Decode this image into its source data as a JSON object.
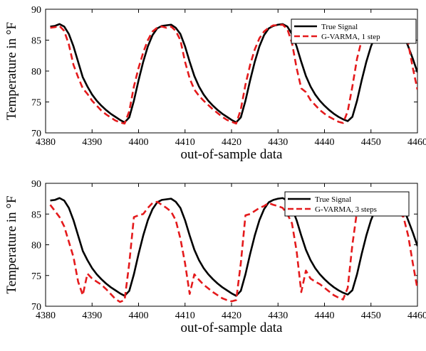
{
  "chart_data": [
    {
      "type": "line",
      "title": "",
      "xlabel": "out-of-sample data",
      "ylabel": "Temperature in °F",
      "xlim": [
        4380,
        4460
      ],
      "ylim": [
        70,
        90
      ],
      "xticks": [
        4380,
        4390,
        4400,
        4410,
        4420,
        4430,
        4440,
        4450,
        4460
      ],
      "yticks": [
        70,
        75,
        80,
        85,
        90
      ],
      "grid": false,
      "legend_position": "top-right",
      "series": [
        {
          "name": "True Signal",
          "color": "#000000",
          "style": "solid",
          "x": [
            4381,
            4382,
            4383,
            4384,
            4385,
            4386,
            4387,
            4388,
            4389,
            4390,
            4391,
            4392,
            4393,
            4394,
            4395,
            4396,
            4397,
            4398,
            4399,
            4400,
            4401,
            4402,
            4403,
            4404,
            4405,
            4406,
            4407,
            4408,
            4409,
            4410,
            4411,
            4412,
            4413,
            4414,
            4415,
            4416,
            4417,
            4418,
            4419,
            4420,
            4421,
            4422,
            4423,
            4424,
            4425,
            4426,
            4427,
            4428,
            4429,
            4430,
            4431,
            4432,
            4433,
            4434,
            4435,
            4436,
            4437,
            4438,
            4439,
            4440,
            4441,
            4442,
            4443,
            4444,
            4445,
            4446,
            4447,
            4448,
            4449,
            4450,
            4451,
            4452,
            4453,
            4454,
            4455,
            4456,
            4457,
            4458,
            4459,
            4460
          ],
          "y": [
            87.2,
            87.3,
            87.6,
            87.2,
            86.0,
            84.0,
            81.5,
            79.0,
            77.5,
            76.2,
            75.2,
            74.4,
            73.7,
            73.1,
            72.6,
            72.1,
            71.7,
            72.5,
            75.2,
            78.5,
            81.5,
            84.0,
            85.8,
            86.9,
            87.3,
            87.4,
            87.5,
            87.0,
            86.0,
            84.0,
            81.5,
            79.2,
            77.5,
            76.2,
            75.2,
            74.4,
            73.7,
            73.1,
            72.6,
            72.1,
            71.7,
            72.5,
            75.2,
            78.5,
            81.5,
            84.0,
            85.8,
            86.9,
            87.3,
            87.5,
            87.6,
            87.2,
            86.0,
            84.0,
            81.5,
            79.2,
            77.5,
            76.2,
            75.2,
            74.4,
            73.7,
            73.1,
            72.6,
            72.2,
            71.9,
            72.6,
            75.2,
            78.5,
            81.5,
            84.0,
            85.8,
            86.9,
            87.3,
            87.4,
            87.4,
            87.0,
            86.0,
            84.0,
            82.0,
            79.8
          ]
        },
        {
          "name": "G-VARMA, 1 step",
          "color": "#e41a1c",
          "style": "dashed",
          "x": [
            4381,
            4382,
            4383,
            4384,
            4385,
            4386,
            4387,
            4388,
            4389,
            4390,
            4391,
            4392,
            4393,
            4394,
            4395,
            4396,
            4397,
            4398,
            4399,
            4400,
            4401,
            4402,
            4403,
            4404,
            4405,
            4406,
            4407,
            4408,
            4409,
            4410,
            4411,
            4412,
            4413,
            4414,
            4415,
            4416,
            4417,
            4418,
            4419,
            4420,
            4421,
            4422,
            4423,
            4424,
            4425,
            4426,
            4427,
            4428,
            4429,
            4430,
            4431,
            4432,
            4433,
            4434,
            4435,
            4436,
            4437,
            4438,
            4439,
            4440,
            4441,
            4442,
            4443,
            4444,
            4445,
            4446,
            4447,
            4448,
            4449,
            4450,
            4451,
            4452,
            4453,
            4454,
            4455,
            4456,
            4457,
            4458,
            4459,
            4460
          ],
          "y": [
            87.0,
            87.1,
            87.3,
            86.5,
            84.3,
            81.0,
            79.0,
            77.2,
            76.3,
            75.2,
            74.4,
            73.6,
            73.0,
            72.5,
            72.0,
            71.7,
            71.5,
            73.5,
            77.5,
            80.5,
            83.0,
            85.0,
            86.4,
            87.0,
            87.2,
            87.0,
            87.2,
            86.5,
            85.0,
            81.5,
            78.8,
            77.0,
            76.0,
            75.2,
            74.5,
            73.8,
            73.2,
            72.6,
            72.1,
            71.8,
            71.5,
            73.8,
            77.8,
            81.0,
            83.5,
            85.3,
            86.4,
            87.0,
            87.4,
            87.4,
            87.5,
            86.8,
            84.6,
            80.5,
            77.2,
            76.6,
            75.3,
            74.5,
            73.7,
            73.1,
            72.6,
            72.2,
            71.8,
            71.6,
            73.5,
            77.5,
            82.0,
            85.0,
            86.6,
            87.6,
            87.8,
            87.5,
            87.5,
            87.0,
            86.5,
            86.0,
            85.4,
            84.5,
            80.5,
            77.0
          ]
        }
      ]
    },
    {
      "type": "line",
      "title": "",
      "xlabel": "out-of-sample data",
      "ylabel": "Temperature in °F",
      "xlim": [
        4380,
        4460
      ],
      "ylim": [
        70,
        90
      ],
      "xticks": [
        4380,
        4390,
        4400,
        4410,
        4420,
        4430,
        4440,
        4450,
        4460
      ],
      "yticks": [
        70,
        75,
        80,
        85,
        90
      ],
      "grid": false,
      "legend_position": "top-right",
      "series": [
        {
          "name": "True Signal",
          "color": "#000000",
          "style": "solid",
          "x": [
            4381,
            4382,
            4383,
            4384,
            4385,
            4386,
            4387,
            4388,
            4389,
            4390,
            4391,
            4392,
            4393,
            4394,
            4395,
            4396,
            4397,
            4398,
            4399,
            4400,
            4401,
            4402,
            4403,
            4404,
            4405,
            4406,
            4407,
            4408,
            4409,
            4410,
            4411,
            4412,
            4413,
            4414,
            4415,
            4416,
            4417,
            4418,
            4419,
            4420,
            4421,
            4422,
            4423,
            4424,
            4425,
            4426,
            4427,
            4428,
            4429,
            4430,
            4431,
            4432,
            4433,
            4434,
            4435,
            4436,
            4437,
            4438,
            4439,
            4440,
            4441,
            4442,
            4443,
            4444,
            4445,
            4446,
            4447,
            4448,
            4449,
            4450,
            4451,
            4452,
            4453,
            4454,
            4455,
            4456,
            4457,
            4458,
            4459,
            4460
          ],
          "y": [
            87.2,
            87.3,
            87.6,
            87.2,
            86.0,
            84.0,
            81.5,
            79.0,
            77.5,
            76.2,
            75.2,
            74.4,
            73.7,
            73.1,
            72.6,
            72.1,
            71.7,
            72.5,
            75.2,
            78.5,
            81.5,
            84.0,
            85.8,
            86.9,
            87.3,
            87.4,
            87.5,
            87.0,
            86.0,
            84.0,
            81.5,
            79.2,
            77.5,
            76.2,
            75.2,
            74.4,
            73.7,
            73.1,
            72.6,
            72.1,
            71.7,
            72.5,
            75.2,
            78.5,
            81.5,
            84.0,
            85.8,
            86.9,
            87.3,
            87.5,
            87.6,
            87.2,
            86.0,
            84.0,
            81.5,
            79.2,
            77.5,
            76.2,
            75.2,
            74.4,
            73.7,
            73.1,
            72.6,
            72.2,
            71.9,
            72.6,
            75.2,
            78.5,
            81.5,
            84.0,
            85.8,
            86.9,
            87.3,
            87.4,
            87.4,
            87.0,
            86.0,
            84.0,
            82.0,
            79.8
          ]
        },
        {
          "name": "G-VARMA, 3 steps",
          "color": "#e41a1c",
          "style": "dashed",
          "x": [
            4381,
            4382,
            4383,
            4384,
            4385,
            4386,
            4387,
            4388,
            4389,
            4390,
            4391,
            4392,
            4393,
            4394,
            4395,
            4396,
            4397,
            4398,
            4399,
            4400,
            4401,
            4402,
            4403,
            4404,
            4405,
            4406,
            4407,
            4408,
            4409,
            4410,
            4411,
            4412,
            4413,
            4414,
            4415,
            4416,
            4417,
            4418,
            4419,
            4420,
            4421,
            4422,
            4423,
            4424,
            4425,
            4426,
            4427,
            4428,
            4429,
            4430,
            4431,
            4432,
            4433,
            4434,
            4435,
            4436,
            4437,
            4438,
            4439,
            4440,
            4441,
            4442,
            4443,
            4444,
            4445,
            4446,
            4447,
            4448,
            4449,
            4450,
            4451,
            4452,
            4453,
            4454,
            4455,
            4456,
            4457,
            4458,
            4459,
            4460
          ],
          "y": [
            86.5,
            85.5,
            84.5,
            83.0,
            80.5,
            78.0,
            74.0,
            71.8,
            75.3,
            74.5,
            74.0,
            73.5,
            72.8,
            72.0,
            71.2,
            70.7,
            71.0,
            77.0,
            84.5,
            84.8,
            85.0,
            86.0,
            86.8,
            87.0,
            86.5,
            86.0,
            85.4,
            84.0,
            81.0,
            77.0,
            72.0,
            75.2,
            74.3,
            73.5,
            72.9,
            72.3,
            71.8,
            71.3,
            71.0,
            70.8,
            71.0,
            77.0,
            84.8,
            85.0,
            85.5,
            86.0,
            86.3,
            86.8,
            86.5,
            86.3,
            86.0,
            85.0,
            83.5,
            79.0,
            72.3,
            75.8,
            74.5,
            74.0,
            73.6,
            73.0,
            72.4,
            71.8,
            71.4,
            71.1,
            73.0,
            80.0,
            85.5,
            86.5,
            86.8,
            86.8,
            86.5,
            86.5,
            86.3,
            86.0,
            85.8,
            85.2,
            84.5,
            81.5,
            77.0,
            72.8
          ]
        }
      ]
    }
  ]
}
